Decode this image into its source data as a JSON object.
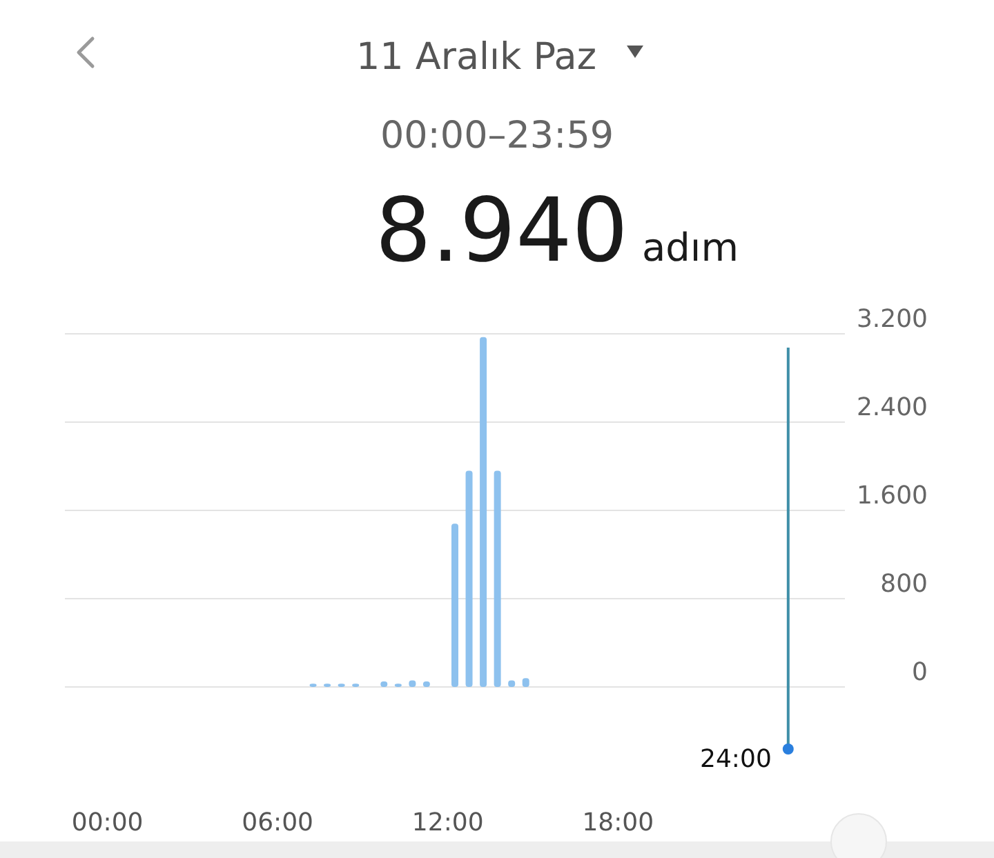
{
  "chart_data": {
    "type": "bar",
    "title": "11 Aralık Paz",
    "subtitle": "00:00–23:59",
    "annotations": [
      "8.940",
      "adım"
    ],
    "x": [
      7.25,
      7.75,
      8.25,
      8.75,
      9.75,
      10.25,
      10.75,
      11.25,
      12.25,
      12.75,
      13.25,
      13.75,
      14.25,
      14.75
    ],
    "values": [
      30,
      30,
      30,
      30,
      50,
      30,
      60,
      50,
      1480,
      1960,
      3170,
      1960,
      60,
      80
    ],
    "color": "#8dc1ee",
    "xlim": [
      -1.5,
      26
    ],
    "xticks": [
      {
        "value": 0,
        "label": "00:00"
      },
      {
        "value": 6,
        "label": "06:00"
      },
      {
        "value": 12,
        "label": "12:00"
      },
      {
        "value": 18,
        "label": "18:00"
      }
    ],
    "ylim": [
      0,
      3200
    ],
    "yticks": [
      {
        "value": 0,
        "label": "0"
      },
      {
        "value": 800,
        "label": "800"
      },
      {
        "value": 1600,
        "label": "1.600"
      },
      {
        "value": 2400,
        "label": "2.400"
      },
      {
        "value": 3200,
        "label": "3.200"
      }
    ],
    "grid": "y",
    "ref_lines": [
      {
        "axis": "x",
        "value": 24,
        "label": "24:00",
        "color": "#3f8fa8"
      }
    ]
  }
}
